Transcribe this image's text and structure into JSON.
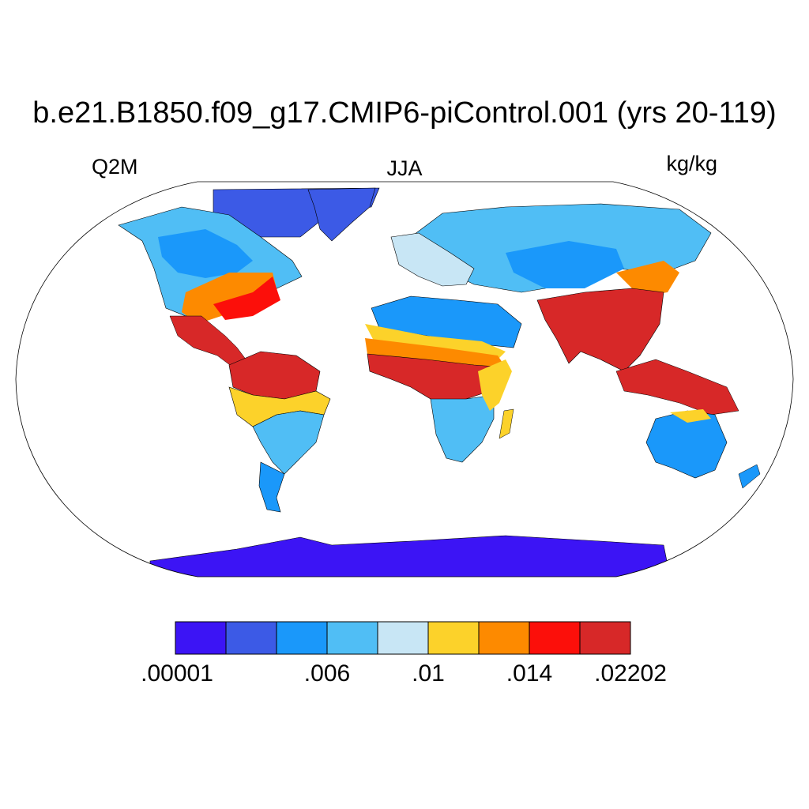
{
  "title": "b.e21.B1850.f09_g17.CMIP6-piControl.001 (yrs 20-119)",
  "variable": "Q2M",
  "season": "JJA",
  "units": "kg/kg",
  "colorbar": {
    "colors": [
      "#3c14f5",
      "#3c5ae6",
      "#1a98fa",
      "#50bef5",
      "#c8e6f5",
      "#fcd22a",
      "#fd8a00",
      "#fc0f0a",
      "#d72828"
    ],
    "labels": [
      ".00001",
      ".006",
      ".01",
      ".014",
      ".02202"
    ]
  }
}
